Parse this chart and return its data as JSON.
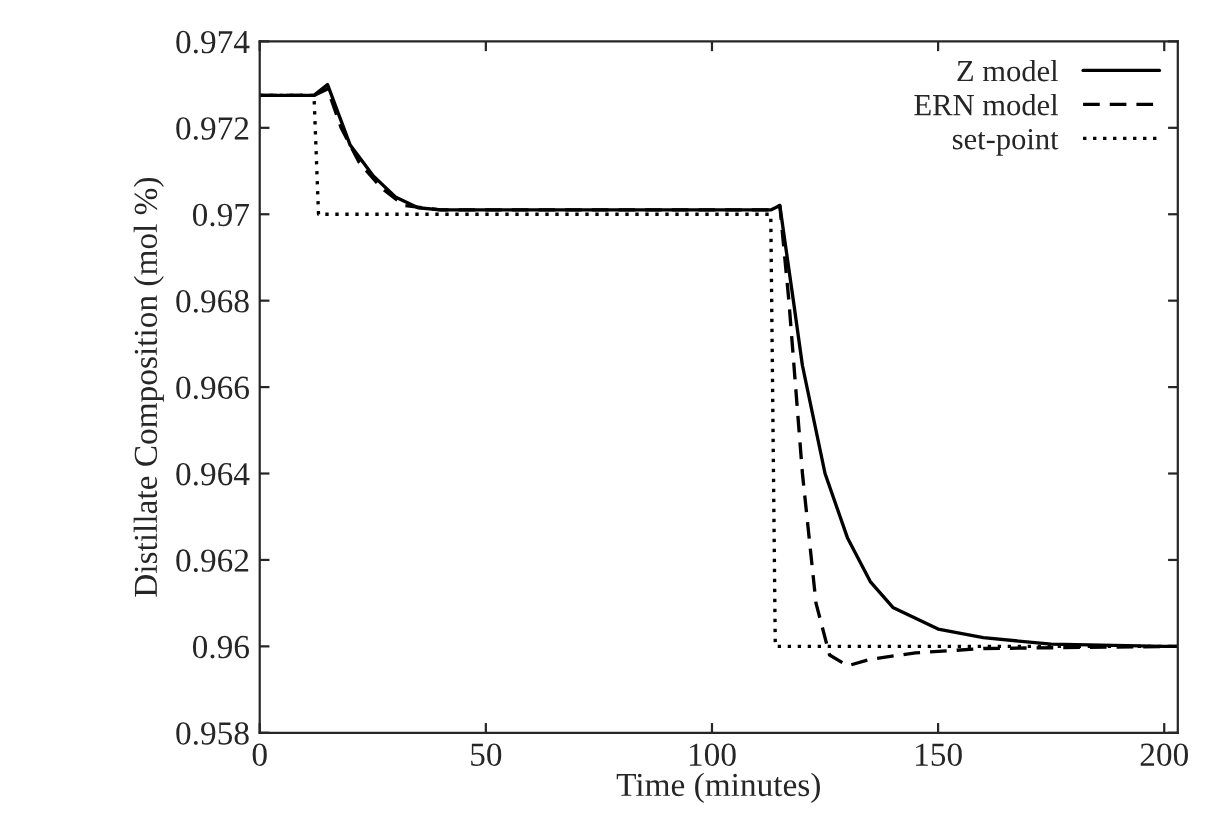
{
  "chart_data": {
    "type": "line",
    "xlabel": "Time (minutes)",
    "ylabel": "Distillate Composition (mol %)",
    "xlim": [
      0,
      203
    ],
    "xticks": [
      0,
      50,
      100,
      150,
      200
    ],
    "ylim": [
      0.958,
      0.974
    ],
    "yticks": [
      0.958,
      0.96,
      0.962,
      0.964,
      0.966,
      0.968,
      0.97,
      0.972,
      0.974
    ],
    "grid": false,
    "legend": "top right",
    "marker": "none",
    "series": [
      {
        "name": "Z model",
        "color": "#000000",
        "line_style": "solid",
        "x": [
          0,
          12,
          15,
          20,
          25,
          30,
          35,
          40,
          80,
          113,
          115,
          118,
          120,
          125,
          130,
          135,
          140,
          150,
          160,
          175,
          200,
          203
        ],
        "values": [
          0.97275,
          0.97275,
          0.973,
          0.9716,
          0.9709,
          0.9704,
          0.97015,
          0.9701,
          0.9701,
          0.9701,
          0.9702,
          0.968,
          0.9665,
          0.964,
          0.9625,
          0.9615,
          0.9609,
          0.9604,
          0.9602,
          0.96005,
          0.96,
          0.96
        ]
      },
      {
        "name": "ERN model",
        "color": "#000000",
        "line_style": "dashed",
        "x": [
          0,
          12,
          15,
          18,
          22,
          27,
          32,
          40,
          80,
          113,
          115,
          117,
          120,
          123,
          126,
          130,
          135,
          145,
          160,
          203
        ],
        "values": [
          0.97275,
          0.97275,
          0.9729,
          0.972,
          0.9712,
          0.9706,
          0.9702,
          0.9701,
          0.9701,
          0.9701,
          0.9702,
          0.968,
          0.964,
          0.961,
          0.9598,
          0.95955,
          0.9597,
          0.95985,
          0.95995,
          0.96
        ]
      },
      {
        "name": "set-point",
        "color": "#000000",
        "line_style": "dotted",
        "x": [
          0,
          12,
          13,
          113,
          114,
          203
        ],
        "values": [
          0.97275,
          0.97275,
          0.97,
          0.97,
          0.96,
          0.96
        ]
      }
    ]
  }
}
